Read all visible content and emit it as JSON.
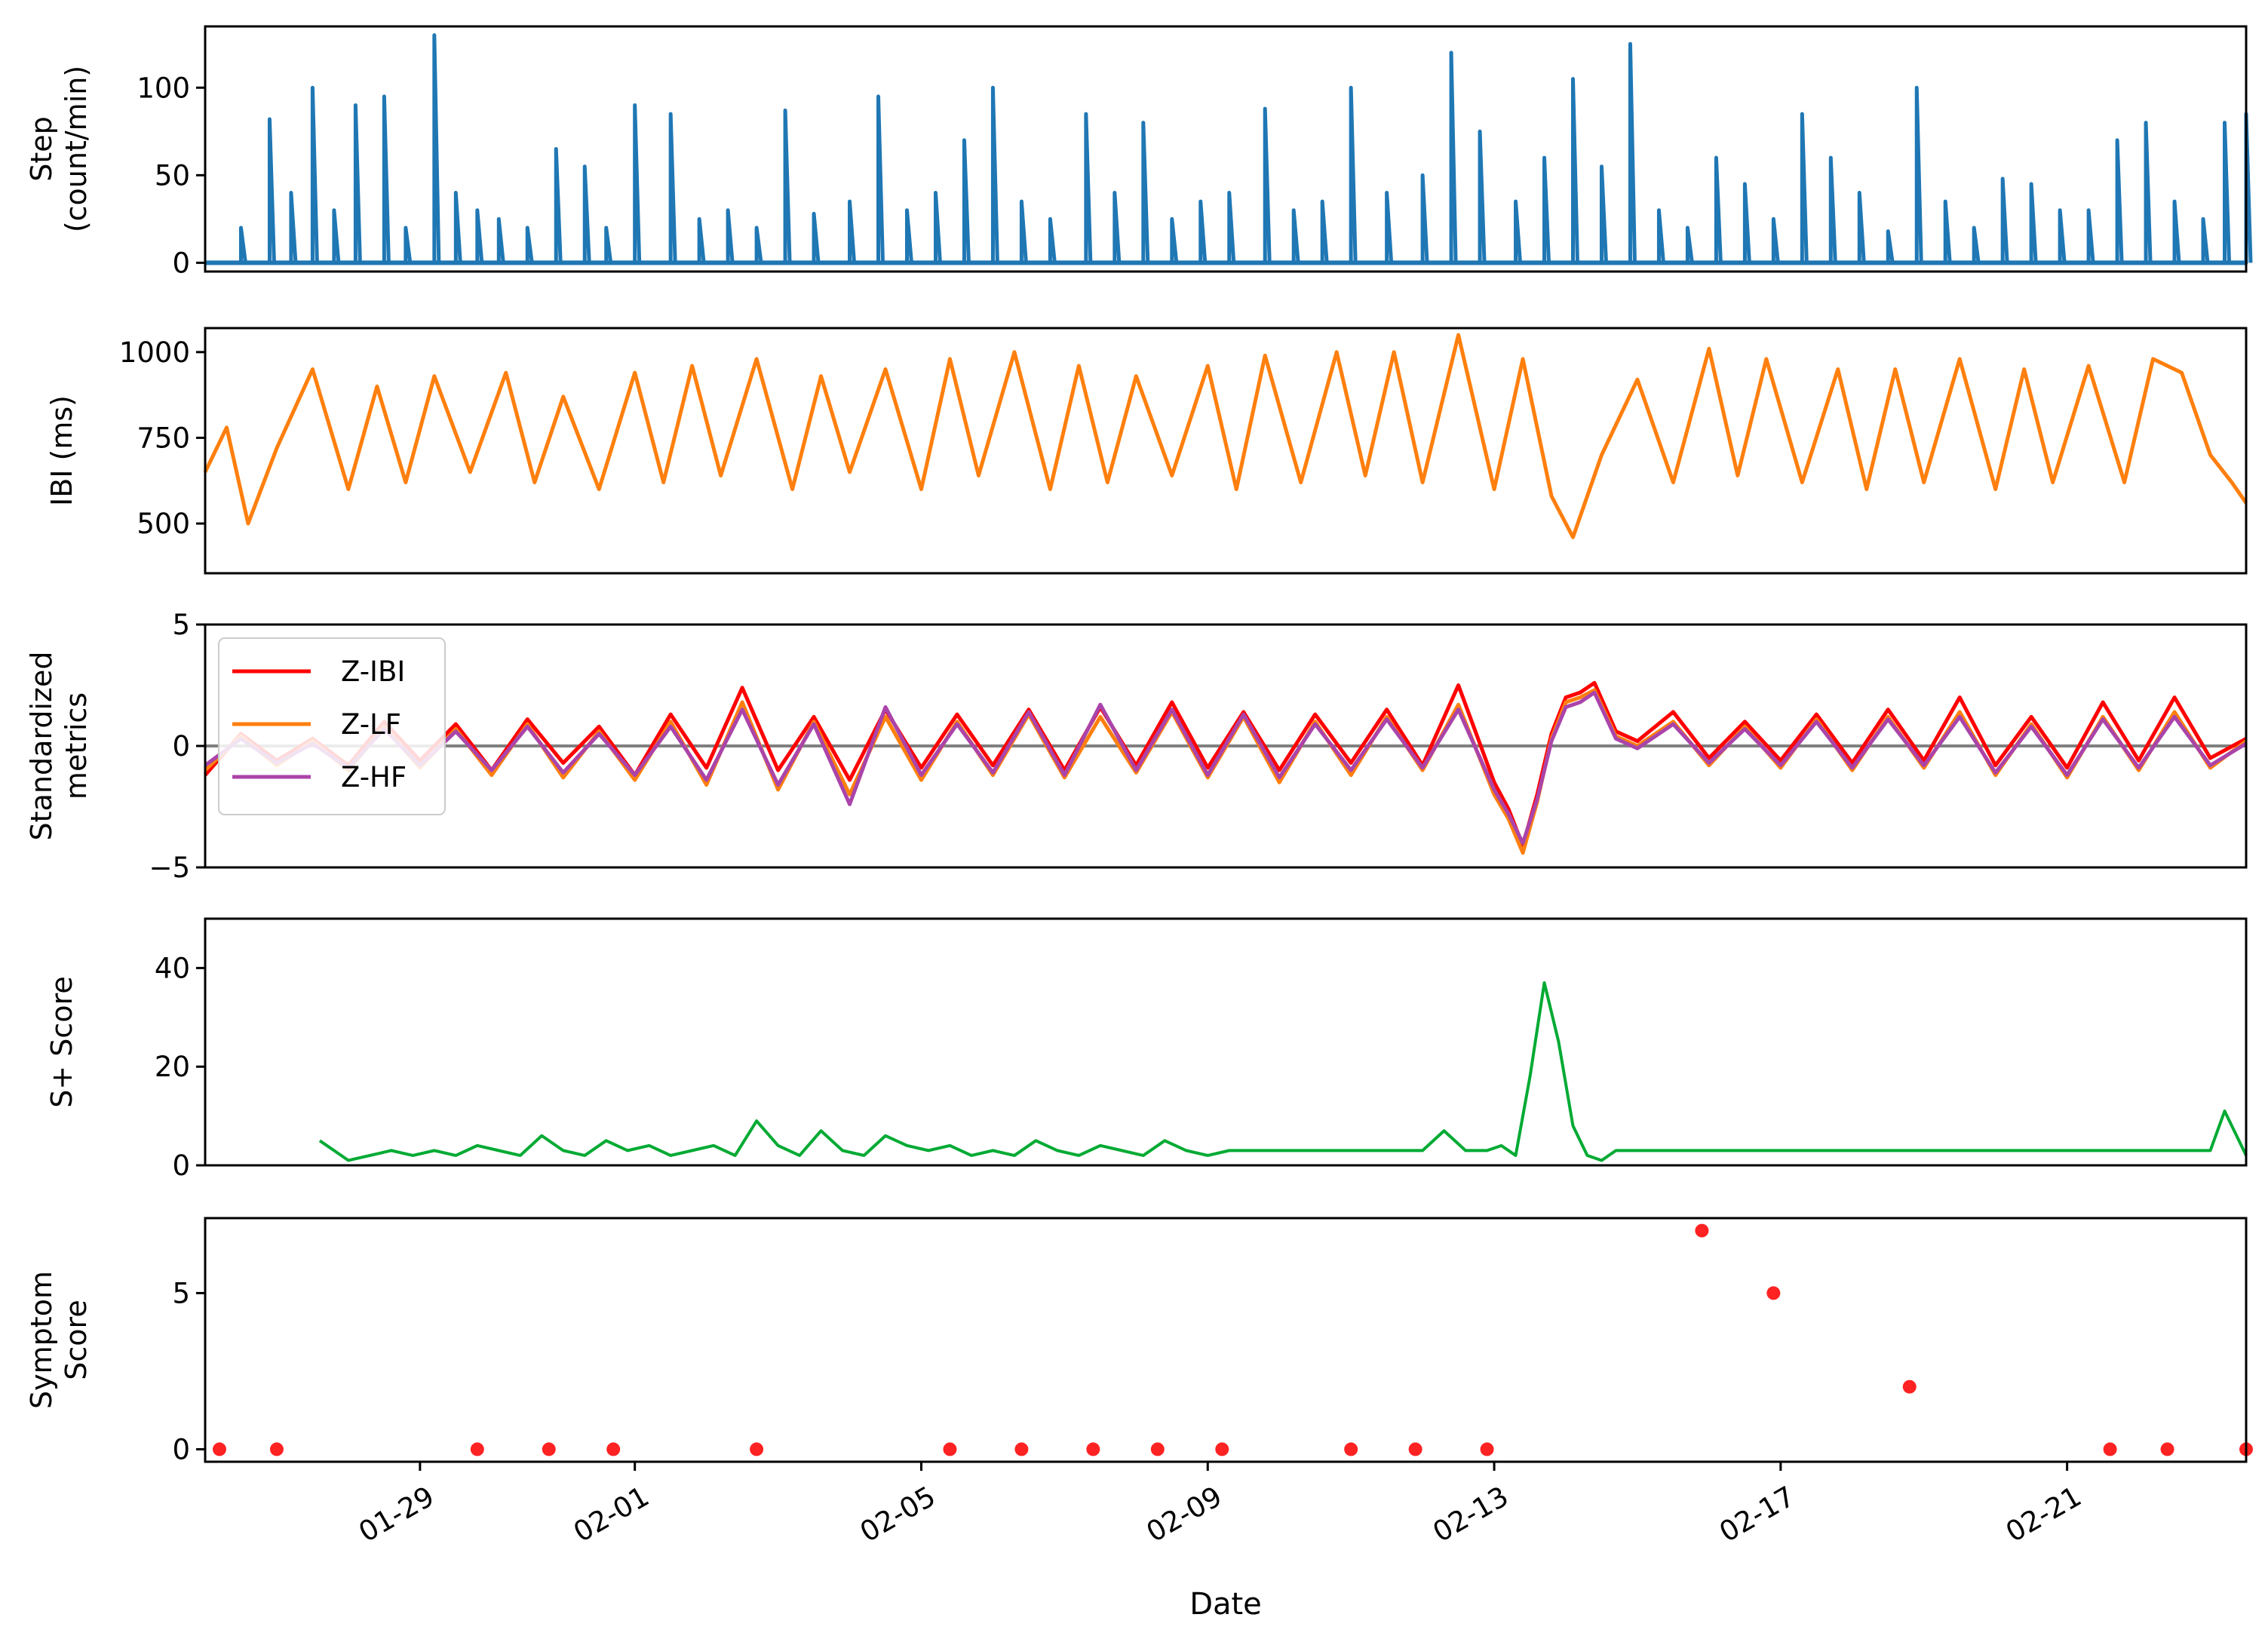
{
  "figure": {
    "x_label": "Date",
    "x_ticks": [
      "01-29",
      "02-01",
      "02-05",
      "02-09",
      "02-13",
      "02-17",
      "02-21"
    ]
  },
  "chart_data": [
    {
      "type": "line",
      "ylabel": [
        "Step",
        "(count/min)"
      ],
      "ylim": [
        -5,
        135
      ],
      "yticks": [
        0,
        50,
        100
      ],
      "color": "#1f77b4",
      "series": [
        {
          "x": [
            26.0,
            26.5,
            26.9,
            27.2,
            27.5,
            27.8,
            28.1,
            28.5,
            28.8,
            29.2,
            29.5,
            29.8,
            30.1,
            30.5,
            30.9,
            31.3,
            31.6,
            32.0,
            32.5,
            32.9,
            33.3,
            33.7,
            34.1,
            34.5,
            35.0,
            35.4,
            35.8,
            36.2,
            36.6,
            37.0,
            37.4,
            37.8,
            38.3,
            38.7,
            39.1,
            39.5,
            39.9,
            40.3,
            40.8,
            41.2,
            41.6,
            42.0,
            42.5,
            43.0,
            43.4,
            43.8,
            44.3,
            44.7,
            45.1,
            45.5,
            45.9,
            46.3,
            46.7,
            47.1,
            47.5,
            47.9,
            48.3,
            48.7,
            49.1,
            49.5,
            49.9,
            50.3,
            50.7,
            51.1,
            51.5,
            51.9,
            52.3,
            52.7,
            53.1,
            53.5,
            53.9,
            54.2,
            54.5
          ],
          "values": [
            0,
            20,
            82,
            40,
            100,
            30,
            90,
            95,
            20,
            130,
            40,
            30,
            25,
            20,
            65,
            55,
            20,
            90,
            85,
            25,
            30,
            20,
            87,
            28,
            35,
            95,
            30,
            40,
            70,
            100,
            35,
            25,
            85,
            40,
            80,
            25,
            35,
            40,
            88,
            30,
            35,
            100,
            40,
            50,
            120,
            75,
            35,
            60,
            105,
            55,
            125,
            30,
            20,
            60,
            45,
            25,
            85,
            60,
            40,
            18,
            100,
            35,
            20,
            48,
            45,
            30,
            30,
            70,
            80,
            35,
            25,
            80,
            85
          ]
        }
      ]
    },
    {
      "type": "line",
      "ylabel": [
        "IBI (ms)"
      ],
      "ylim": [
        355,
        1070
      ],
      "yticks": [
        500,
        750,
        1000
      ],
      "color": "#ff7f0e",
      "series": [
        {
          "x": [
            26.0,
            26.3,
            26.6,
            27.0,
            27.5,
            28.0,
            28.4,
            28.8,
            29.2,
            29.7,
            30.2,
            30.6,
            31.0,
            31.5,
            32.0,
            32.4,
            32.8,
            33.2,
            33.7,
            34.2,
            34.6,
            35.0,
            35.5,
            36.0,
            36.4,
            36.8,
            37.3,
            37.8,
            38.2,
            38.6,
            39.0,
            39.5,
            40.0,
            40.4,
            40.8,
            41.3,
            41.8,
            42.2,
            42.6,
            43.0,
            43.5,
            44.0,
            44.4,
            44.8,
            45.1,
            45.5,
            46.0,
            46.5,
            47.0,
            47.4,
            47.8,
            48.3,
            48.8,
            49.2,
            49.6,
            50.0,
            50.5,
            51.0,
            51.4,
            51.8,
            52.3,
            52.8,
            53.2,
            53.6,
            54.0,
            54.3,
            54.5
          ],
          "values": [
            650,
            780,
            500,
            720,
            950,
            600,
            900,
            620,
            930,
            650,
            940,
            620,
            870,
            600,
            940,
            620,
            960,
            640,
            980,
            600,
            930,
            650,
            950,
            600,
            980,
            640,
            1000,
            600,
            960,
            620,
            930,
            640,
            960,
            600,
            990,
            620,
            1000,
            640,
            1000,
            620,
            1050,
            600,
            980,
            580,
            460,
            700,
            920,
            620,
            1010,
            640,
            980,
            620,
            950,
            600,
            950,
            620,
            980,
            600,
            950,
            620,
            960,
            620,
            980,
            940,
            700,
            620,
            560
          ]
        }
      ]
    },
    {
      "type": "line",
      "ylabel": [
        "Standardized",
        "metrics"
      ],
      "ylim": [
        -5,
        5
      ],
      "yticks": [
        -5,
        0,
        5
      ],
      "ytick_labels": [
        "−5",
        "0",
        "5"
      ],
      "baseline": 0,
      "legend": "upper left",
      "series": [
        {
          "name": "Z-IBI",
          "color": "#ff0000",
          "x": [
            26.0,
            26.5,
            27.0,
            27.5,
            28.0,
            28.5,
            29.0,
            29.5,
            30.0,
            30.5,
            31.0,
            31.5,
            32.0,
            32.5,
            33.0,
            33.5,
            34.0,
            34.5,
            35.0,
            35.5,
            36.0,
            36.5,
            37.0,
            37.5,
            38.0,
            38.5,
            39.0,
            39.5,
            40.0,
            40.5,
            41.0,
            41.5,
            42.0,
            42.5,
            43.0,
            43.5,
            44.0,
            44.2,
            44.4,
            44.6,
            44.8,
            45.0,
            45.2,
            45.4,
            45.7,
            46.0,
            46.5,
            47.0,
            47.5,
            48.0,
            48.5,
            49.0,
            49.5,
            50.0,
            50.5,
            51.0,
            51.5,
            52.0,
            52.5,
            53.0,
            53.5,
            54.0,
            54.5
          ],
          "values": [
            -1.2,
            0.5,
            -0.6,
            0.3,
            -0.8,
            1.0,
            -0.6,
            0.9,
            -1.0,
            1.1,
            -0.7,
            0.8,
            -1.2,
            1.3,
            -0.9,
            2.4,
            -1.0,
            1.2,
            -1.4,
            1.5,
            -0.9,
            1.3,
            -0.8,
            1.5,
            -1.0,
            1.6,
            -0.8,
            1.8,
            -0.9,
            1.4,
            -1.0,
            1.3,
            -0.7,
            1.5,
            -0.8,
            2.5,
            -1.5,
            -2.6,
            -4.1,
            -2.0,
            0.5,
            2.0,
            2.2,
            2.6,
            0.6,
            0.2,
            1.4,
            -0.5,
            1.0,
            -0.6,
            1.3,
            -0.7,
            1.5,
            -0.6,
            2.0,
            -0.8,
            1.2,
            -0.9,
            1.8,
            -0.6,
            2.0,
            -0.5,
            0.3
          ]
        },
        {
          "name": "Z-LF",
          "color": "#ff7f0e",
          "x": [
            26.0,
            26.5,
            27.0,
            27.5,
            28.0,
            28.5,
            29.0,
            29.5,
            30.0,
            30.5,
            31.0,
            31.5,
            32.0,
            32.5,
            33.0,
            33.5,
            34.0,
            34.5,
            35.0,
            35.5,
            36.0,
            36.5,
            37.0,
            37.5,
            38.0,
            38.5,
            39.0,
            39.5,
            40.0,
            40.5,
            41.0,
            41.5,
            42.0,
            42.5,
            43.0,
            43.5,
            44.0,
            44.2,
            44.4,
            44.6,
            44.8,
            45.0,
            45.2,
            45.4,
            45.7,
            46.0,
            46.5,
            47.0,
            47.5,
            48.0,
            48.5,
            49.0,
            49.5,
            50.0,
            50.5,
            51.0,
            51.5,
            52.0,
            52.5,
            53.0,
            53.5,
            54.0,
            54.5
          ],
          "values": [
            -1.0,
            0.4,
            -0.8,
            0.2,
            -1.0,
            0.8,
            -0.9,
            0.7,
            -1.2,
            0.9,
            -1.3,
            0.6,
            -1.4,
            1.0,
            -1.6,
            1.8,
            -1.8,
            1.0,
            -2.0,
            1.2,
            -1.4,
            1.0,
            -1.2,
            1.3,
            -1.3,
            1.2,
            -1.1,
            1.4,
            -1.3,
            1.2,
            -1.5,
            1.0,
            -1.2,
            1.2,
            -1.0,
            1.7,
            -2.0,
            -3.0,
            -4.4,
            -2.3,
            0.3,
            1.8,
            2.0,
            2.3,
            0.4,
            0.0,
            1.0,
            -0.8,
            0.8,
            -0.9,
            1.1,
            -1.0,
            1.2,
            -0.9,
            1.4,
            -1.2,
            0.9,
            -1.3,
            1.2,
            -1.0,
            1.4,
            -0.9,
            0.2
          ]
        },
        {
          "name": "Z-HF",
          "color": "#aa44aa",
          "x": [
            26.0,
            26.5,
            27.0,
            27.5,
            28.0,
            28.5,
            29.0,
            29.5,
            30.0,
            30.5,
            31.0,
            31.5,
            32.0,
            32.5,
            33.0,
            33.5,
            34.0,
            34.5,
            35.0,
            35.5,
            36.0,
            36.5,
            37.0,
            37.5,
            38.0,
            38.5,
            39.0,
            39.5,
            40.0,
            40.5,
            41.0,
            41.5,
            42.0,
            42.5,
            43.0,
            43.5,
            44.0,
            44.2,
            44.4,
            44.6,
            44.8,
            45.0,
            45.2,
            45.4,
            45.7,
            46.0,
            46.5,
            47.0,
            47.5,
            48.0,
            48.5,
            49.0,
            49.5,
            50.0,
            50.5,
            51.0,
            51.5,
            52.0,
            52.5,
            53.0,
            53.5,
            54.0,
            54.5
          ],
          "values": [
            -0.8,
            0.3,
            -0.7,
            0.1,
            -0.9,
            0.7,
            -0.8,
            0.6,
            -1.0,
            0.8,
            -1.1,
            0.5,
            -1.2,
            0.8,
            -1.4,
            1.5,
            -1.6,
            0.9,
            -2.4,
            1.6,
            -1.2,
            0.9,
            -1.1,
            1.4,
            -1.2,
            1.7,
            -1.0,
            1.5,
            -1.2,
            1.3,
            -1.3,
            0.9,
            -1.0,
            1.1,
            -0.9,
            1.5,
            -1.8,
            -2.8,
            -4.0,
            -2.2,
            0.2,
            1.6,
            1.8,
            2.2,
            0.3,
            -0.1,
            0.9,
            -0.7,
            0.7,
            -0.8,
            1.0,
            -0.9,
            1.1,
            -0.8,
            1.2,
            -1.1,
            0.8,
            -1.2,
            1.1,
            -0.9,
            1.2,
            -0.8,
            0.1
          ]
        }
      ]
    },
    {
      "type": "line",
      "ylabel": [
        "S+ Score"
      ],
      "ylim": [
        0,
        50
      ],
      "yticks": [
        0,
        20,
        40
      ],
      "color": "#00aa33",
      "series": [
        {
          "x": [
            27.6,
            27.8,
            28.0,
            28.3,
            28.6,
            28.9,
            29.2,
            29.5,
            29.8,
            30.1,
            30.4,
            30.7,
            31.0,
            31.3,
            31.6,
            31.9,
            32.2,
            32.5,
            32.8,
            33.1,
            33.4,
            33.7,
            34.0,
            34.3,
            34.6,
            34.9,
            35.2,
            35.5,
            35.8,
            36.1,
            36.4,
            36.7,
            37.0,
            37.3,
            37.6,
            37.9,
            38.2,
            38.5,
            38.8,
            39.1,
            39.4,
            39.7,
            40.0,
            40.3,
            40.6,
            40.9,
            41.2,
            41.5,
            41.8,
            42.1,
            42.4,
            42.7,
            43.0,
            43.3,
            43.6,
            43.9,
            44.1,
            44.3,
            44.5,
            44.7,
            44.9,
            45.1,
            45.3,
            45.5,
            45.7,
            46.0,
            47.0,
            48.0,
            49.0,
            50.0,
            51.0,
            52.0,
            53.0,
            54.0,
            54.2,
            54.4,
            54.5
          ],
          "values": [
            5,
            3,
            1,
            2,
            3,
            2,
            3,
            2,
            4,
            3,
            2,
            6,
            3,
            2,
            5,
            3,
            4,
            2,
            3,
            4,
            2,
            9,
            4,
            2,
            7,
            3,
            2,
            6,
            4,
            3,
            4,
            2,
            3,
            2,
            5,
            3,
            2,
            4,
            3,
            2,
            5,
            3,
            2,
            3,
            3,
            3,
            3,
            3,
            3,
            3,
            3,
            3,
            3,
            7,
            3,
            3,
            4,
            2,
            18,
            37,
            25,
            8,
            2,
            1,
            3,
            3,
            3,
            3,
            3,
            3,
            3,
            3,
            3,
            3,
            11,
            5,
            2
          ]
        }
      ]
    },
    {
      "type": "scatter",
      "ylabel": [
        "Symptom",
        "Score"
      ],
      "ylim": [
        -0.4,
        7.4
      ],
      "yticks": [
        0,
        5
      ],
      "color": "#ff2222",
      "series": [
        {
          "x": [
            26.2,
            27.0,
            29.8,
            30.8,
            31.7,
            33.7,
            36.4,
            37.4,
            38.4,
            39.3,
            40.2,
            42.0,
            42.9,
            43.9,
            46.9,
            47.9,
            49.8,
            52.6,
            53.4,
            54.5
          ],
          "values": [
            0,
            0,
            0,
            0,
            0,
            0,
            0,
            0,
            0,
            0,
            0,
            0,
            0,
            0,
            7,
            5,
            2,
            0,
            0,
            0
          ]
        }
      ]
    }
  ]
}
